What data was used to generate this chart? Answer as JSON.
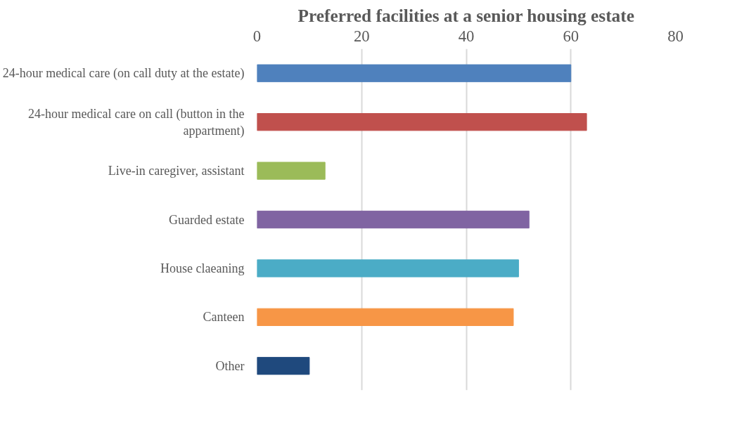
{
  "chart_data": {
    "type": "bar",
    "orientation": "horizontal",
    "title": "Preferred facilities at a senior housing estate",
    "categories": [
      "24-hour medical care (on call duty at the estate)",
      "24-hour medical care on call (button in the appartment)",
      "Live-in caregiver, assistant",
      "Guarded estate",
      "House claeaning",
      "Canteen",
      "Other"
    ],
    "values": [
      60,
      63,
      13,
      52,
      50,
      49,
      10
    ],
    "colors": [
      "#4f81bd",
      "#c0504d",
      "#9bbb59",
      "#8064a2",
      "#4bacc6",
      "#f79646",
      "#1f497d"
    ],
    "xlim": [
      0,
      80
    ],
    "xticks": [
      0,
      20,
      40,
      60,
      80
    ],
    "grid": "x"
  }
}
